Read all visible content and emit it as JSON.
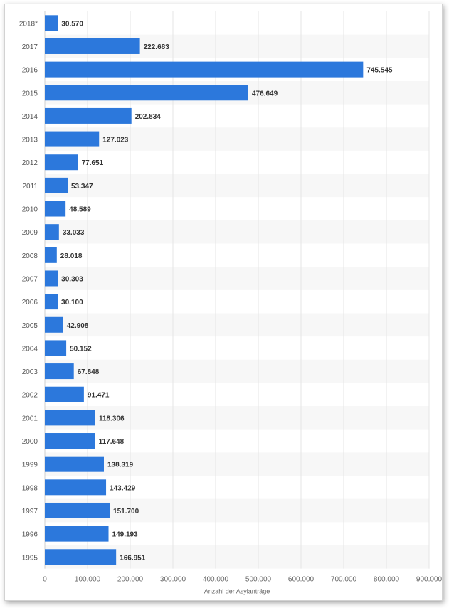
{
  "chart_data": {
    "type": "bar",
    "orientation": "horizontal",
    "categories": [
      "2018*",
      "2017",
      "2016",
      "2015",
      "2014",
      "2013",
      "2012",
      "2011",
      "2010",
      "2009",
      "2008",
      "2007",
      "2006",
      "2005",
      "2004",
      "2003",
      "2002",
      "2001",
      "2000",
      "1999",
      "1998",
      "1997",
      "1996",
      "1995"
    ],
    "values": [
      30570,
      222683,
      745545,
      476649,
      202834,
      127023,
      77651,
      53347,
      48589,
      33033,
      28018,
      30303,
      30100,
      42908,
      50152,
      67848,
      91471,
      118306,
      117648,
      138319,
      143429,
      151700,
      149193,
      166951
    ],
    "value_labels": [
      "30.570",
      "222.683",
      "745.545",
      "476.649",
      "202.834",
      "127.023",
      "77.651",
      "53.347",
      "48.589",
      "33.033",
      "28.018",
      "30.303",
      "30.100",
      "42.908",
      "50.152",
      "67.848",
      "91.471",
      "118.306",
      "117.648",
      "138.319",
      "143.429",
      "151.700",
      "149.193",
      "166.951"
    ],
    "xlim": [
      0,
      900000
    ],
    "x_ticks": [
      0,
      100000,
      200000,
      300000,
      400000,
      500000,
      600000,
      700000,
      800000,
      900000
    ],
    "x_tick_labels": [
      "0",
      "100.000",
      "200.000",
      "300.000",
      "400.000",
      "500.000",
      "600.000",
      "700.000",
      "800.000",
      "900.000"
    ],
    "xlabel": "Anzahl der Asylanträge",
    "ylabel": "",
    "title": "",
    "grid": true,
    "bar_color": "#2c78dc"
  }
}
